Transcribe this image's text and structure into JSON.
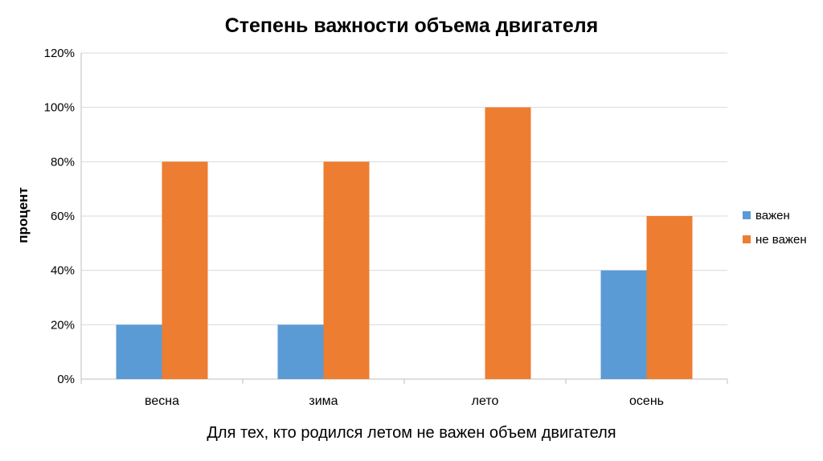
{
  "chart_data": {
    "type": "bar",
    "title": "Степень важности объема двигателя",
    "xlabel": "Для тех, кто родился летом не важен объем двигателя",
    "ylabel": "процент",
    "categories": [
      "весна",
      "зима",
      "лето",
      "осень"
    ],
    "series": [
      {
        "name": "важен",
        "values": [
          20,
          20,
          0,
          40
        ],
        "color": "#5B9BD5"
      },
      {
        "name": "не важен",
        "values": [
          80,
          80,
          100,
          60
        ],
        "color": "#ED7D31"
      }
    ],
    "ylim": [
      0,
      120
    ],
    "yticks": [
      "0%",
      "20%",
      "40%",
      "60%",
      "80%",
      "100%",
      "120%"
    ],
    "grid": true,
    "legend_position": "right"
  }
}
